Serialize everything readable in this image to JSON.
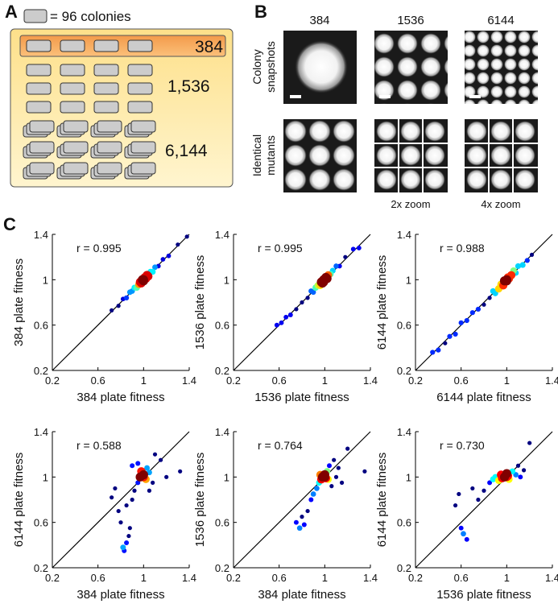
{
  "panels": {
    "a": {
      "label": "A",
      "legend": "= 96 colonies",
      "rows": [
        "384",
        "1,536",
        "6,144"
      ]
    },
    "b": {
      "label": "B",
      "columns": [
        "384",
        "1536",
        "6144"
      ],
      "row_labels": [
        [
          "Colony",
          "snapshots"
        ],
        [
          "Identical",
          "mutants"
        ]
      ],
      "zoom_labels": [
        "2x zoom",
        "4x zoom"
      ]
    },
    "c": {
      "label": "C"
    }
  },
  "chart_data": [
    {
      "type": "scatter",
      "annotation": "r = 0.995",
      "xlabel": "384 plate fitness",
      "ylabel": "384 plate fitness",
      "xlim": [
        0.2,
        1.4
      ],
      "ylim": [
        0.2,
        1.4
      ],
      "xticks": [
        0.2,
        0.6,
        1,
        1.4
      ],
      "yticks": [
        0.2,
        0.6,
        1,
        1.4
      ],
      "diagonal": true,
      "x": [
        0.72,
        0.78,
        0.82,
        0.85,
        0.88,
        0.9,
        0.92,
        0.94,
        0.96,
        0.97,
        0.98,
        0.99,
        1.0,
        1.01,
        1.02,
        1.03,
        1.04,
        1.06,
        1.08,
        1.1,
        1.13,
        1.17,
        1.22,
        1.3,
        1.38,
        0.99,
        1.0,
        1.01
      ],
      "y": [
        0.73,
        0.77,
        0.83,
        0.84,
        0.89,
        0.9,
        0.93,
        0.93,
        0.96,
        0.98,
        0.97,
        1.0,
        1.0,
        1.02,
        1.01,
        1.04,
        1.03,
        1.07,
        1.07,
        1.11,
        1.12,
        1.18,
        1.21,
        1.31,
        1.38,
        1.0,
        0.99,
        1.01
      ]
    },
    {
      "type": "scatter",
      "annotation": "r = 0.995",
      "xlabel": "1536 plate fitness",
      "ylabel": "1536 plate fitness",
      "xlim": [
        0.2,
        1.4
      ],
      "ylim": [
        0.2,
        1.4
      ],
      "xticks": [
        0.2,
        0.6,
        1,
        1.4
      ],
      "yticks": [
        0.2,
        0.6,
        1,
        1.4
      ],
      "diagonal": true,
      "x": [
        0.58,
        0.62,
        0.66,
        0.7,
        0.75,
        0.8,
        0.85,
        0.88,
        0.9,
        0.92,
        0.94,
        0.96,
        0.97,
        0.98,
        0.99,
        1.0,
        1.01,
        1.02,
        1.03,
        1.05,
        1.07,
        1.1,
        1.13,
        1.18,
        1.25,
        1.3,
        1.0,
        0.99
      ],
      "y": [
        0.6,
        0.62,
        0.67,
        0.69,
        0.74,
        0.8,
        0.84,
        0.9,
        0.89,
        0.93,
        0.95,
        0.95,
        0.98,
        0.97,
        1.0,
        1.0,
        1.02,
        1.01,
        1.04,
        1.05,
        1.08,
        1.12,
        1.12,
        1.2,
        1.27,
        1.28,
        1.01,
        0.98
      ]
    },
    {
      "type": "scatter",
      "annotation": "r = 0.988",
      "xlabel": "6144 plate fitness",
      "ylabel": "6144 plate fitness",
      "xlim": [
        0.2,
        1.4
      ],
      "ylim": [
        0.2,
        1.4
      ],
      "xticks": [
        0.2,
        0.6,
        1,
        1.4
      ],
      "yticks": [
        0.2,
        0.6,
        1,
        1.4
      ],
      "diagonal": true,
      "x": [
        0.35,
        0.4,
        0.46,
        0.5,
        0.55,
        0.6,
        0.65,
        0.7,
        0.75,
        0.8,
        0.85,
        0.88,
        0.9,
        0.93,
        0.95,
        0.97,
        0.98,
        1.0,
        1.01,
        1.02,
        1.04,
        1.06,
        1.08,
        1.1,
        1.14,
        1.18,
        1.22,
        1.0
      ],
      "y": [
        0.36,
        0.38,
        0.44,
        0.5,
        0.52,
        0.62,
        0.64,
        0.71,
        0.74,
        0.78,
        0.84,
        0.9,
        0.88,
        0.92,
        0.96,
        0.95,
        0.99,
        1.0,
        1.02,
        1.01,
        1.04,
        1.08,
        1.06,
        1.12,
        1.13,
        1.17,
        1.22,
        0.99
      ]
    },
    {
      "type": "scatter",
      "annotation": "r = 0.588",
      "xlabel": "384 plate fitness",
      "ylabel": "6144 plate fitness",
      "xlim": [
        0.2,
        1.4
      ],
      "ylim": [
        0.2,
        1.4
      ],
      "xticks": [
        0.2,
        0.6,
        1,
        1.4
      ],
      "yticks": [
        0.2,
        0.6,
        1,
        1.4
      ],
      "diagonal": true,
      "x": [
        0.82,
        0.85,
        0.88,
        0.8,
        0.78,
        0.72,
        0.75,
        0.85,
        0.9,
        0.92,
        0.95,
        0.97,
        0.98,
        1.0,
        1.0,
        1.02,
        1.03,
        1.05,
        1.08,
        1.1,
        1.15,
        1.2,
        1.32,
        0.9,
        0.95,
        1.05,
        1.0,
        0.99,
        0.87,
        0.83
      ],
      "y": [
        0.38,
        0.42,
        0.55,
        0.6,
        0.7,
        0.82,
        0.9,
        0.75,
        0.8,
        0.88,
        0.95,
        1.0,
        1.05,
        1.0,
        1.02,
        0.98,
        1.08,
        1.04,
        0.95,
        1.2,
        1.15,
        1.0,
        1.05,
        1.1,
        1.12,
        0.88,
        1.0,
        1.01,
        0.48,
        0.35
      ]
    },
    {
      "type": "scatter",
      "annotation": "r = 0.764",
      "xlabel": "384 plate fitness",
      "ylabel": "1536 plate fitness",
      "xlim": [
        0.2,
        1.4
      ],
      "ylim": [
        0.2,
        1.4
      ],
      "xticks": [
        0.2,
        0.6,
        1,
        1.4
      ],
      "yticks": [
        0.2,
        0.6,
        1,
        1.4
      ],
      "diagonal": true,
      "x": [
        0.75,
        0.78,
        0.8,
        0.82,
        0.85,
        0.88,
        0.9,
        0.93,
        0.95,
        0.97,
        0.98,
        1.0,
        1.0,
        1.01,
        1.02,
        1.04,
        1.06,
        1.08,
        1.1,
        1.12,
        1.15,
        1.2,
        1.35,
        0.96,
        1.03,
        0.99
      ],
      "y": [
        0.6,
        0.55,
        0.65,
        0.58,
        0.7,
        0.8,
        0.85,
        0.9,
        0.95,
        0.98,
        1.0,
        1.0,
        1.02,
        0.99,
        1.05,
        1.1,
        0.92,
        1.15,
        1.0,
        1.08,
        0.95,
        1.25,
        1.05,
        1.02,
        0.98,
        1.01
      ]
    },
    {
      "type": "scatter",
      "annotation": "r = 0.730",
      "xlabel": "1536 plate fitness",
      "ylabel": "6144 plate fitness",
      "xlim": [
        0.2,
        1.4
      ],
      "ylim": [
        0.2,
        1.4
      ],
      "xticks": [
        0.2,
        0.6,
        1,
        1.4
      ],
      "yticks": [
        0.2,
        0.6,
        1,
        1.4
      ],
      "diagonal": true,
      "x": [
        0.55,
        0.6,
        0.62,
        0.65,
        0.58,
        0.7,
        0.75,
        0.8,
        0.85,
        0.88,
        0.9,
        0.93,
        0.95,
        0.98,
        1.0,
        1.0,
        1.02,
        1.05,
        1.08,
        1.1,
        1.12,
        1.15,
        1.2,
        0.96,
        1.01,
        0.99
      ],
      "y": [
        0.75,
        0.55,
        0.5,
        0.45,
        0.85,
        0.9,
        0.8,
        0.88,
        0.95,
        0.98,
        1.0,
        0.97,
        1.02,
        1.0,
        1.0,
        1.03,
        0.98,
        1.05,
        1.02,
        1.1,
        1.0,
        1.06,
        1.3,
        0.99,
        1.01,
        1.0
      ]
    }
  ]
}
